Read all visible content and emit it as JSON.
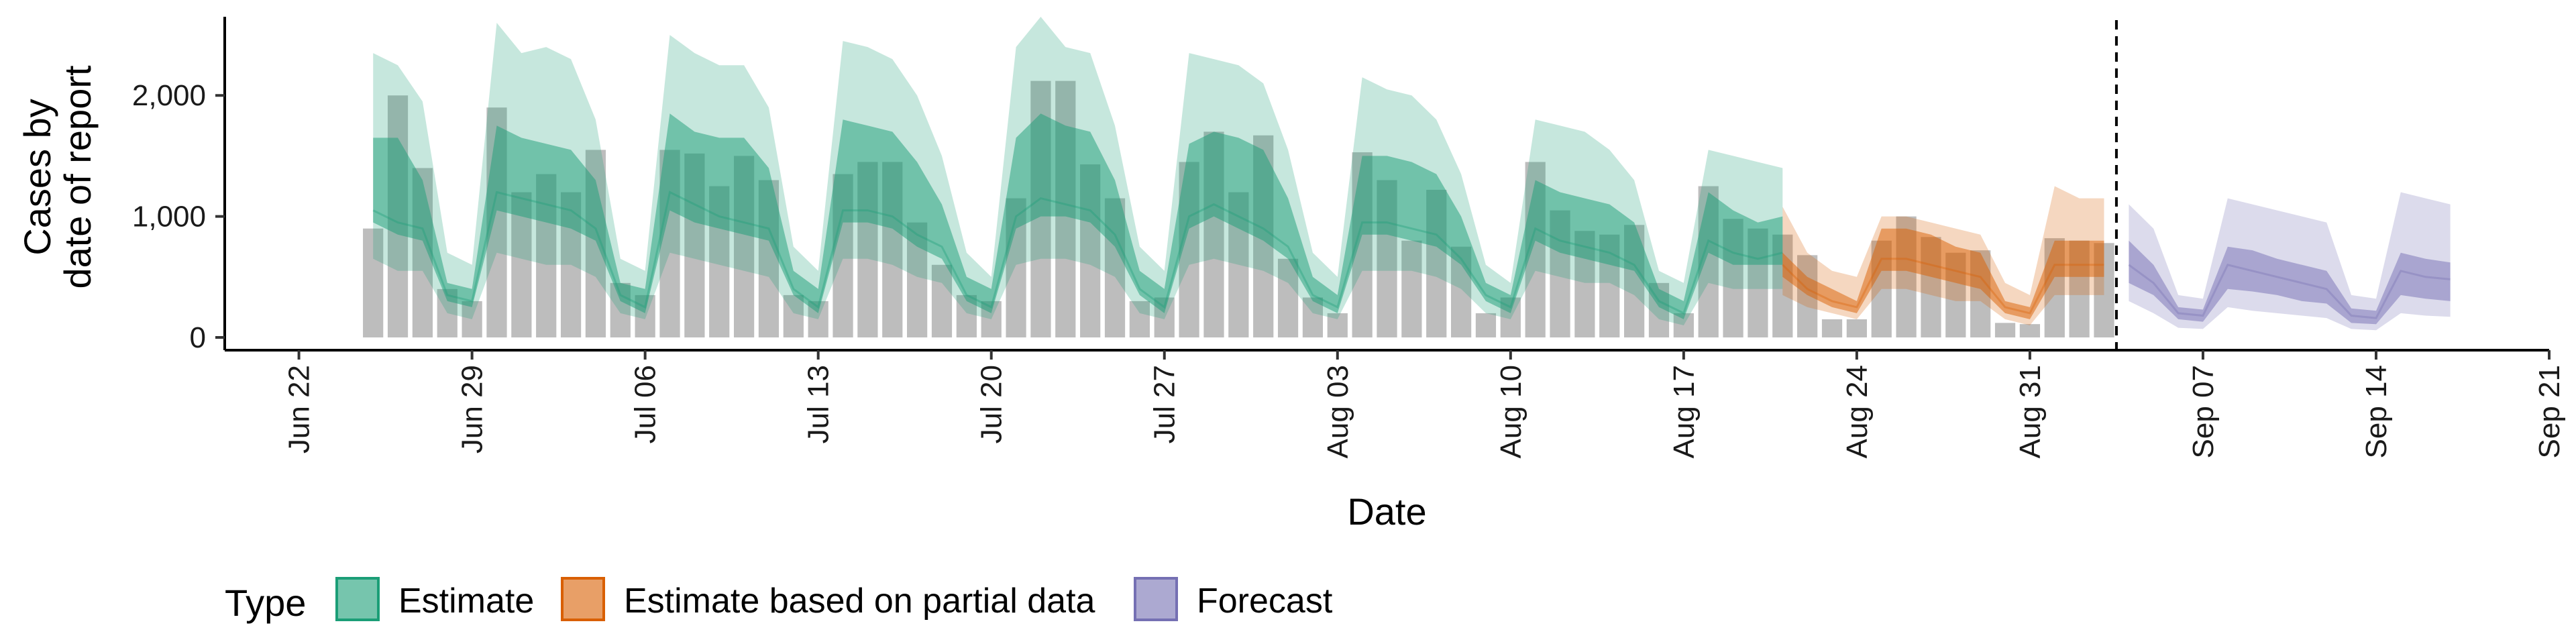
{
  "chart_data": {
    "type": "area",
    "xlabel": "Date",
    "ylabel": [
      "Cases by",
      "date of report"
    ],
    "ylim": [
      0,
      2650
    ],
    "xlim": [
      "2020-06-19",
      "2020-09-21"
    ],
    "x_ticks": [
      "Jun 22",
      "Jun 29",
      "Jul 06",
      "Jul 13",
      "Jul 20",
      "Jul 27",
      "Aug 03",
      "Aug 10",
      "Aug 17",
      "Aug 24",
      "Aug 31",
      "Sep 07",
      "Sep 14",
      "Sep 21"
    ],
    "x_tick_dates": [
      "2020-06-22",
      "2020-06-29",
      "2020-07-06",
      "2020-07-13",
      "2020-07-20",
      "2020-07-27",
      "2020-08-03",
      "2020-08-10",
      "2020-08-17",
      "2020-08-24",
      "2020-08-31",
      "2020-09-07",
      "2020-09-14",
      "2020-09-21"
    ],
    "y_ticks": [
      0,
      1000,
      2000
    ],
    "y_tick_labels": [
      "0",
      "1,000",
      "2,000"
    ],
    "start_date": "2020-06-25",
    "reported_cases": [
      900,
      2000,
      1400,
      400,
      300,
      1900,
      1200,
      1350,
      1200,
      1550,
      450,
      350,
      1550,
      1520,
      1250,
      1500,
      1300,
      350,
      300,
      1350,
      1450,
      1450,
      950,
      600,
      350,
      300,
      1150,
      2120,
      2120,
      1430,
      1150,
      300,
      330,
      1450,
      1700,
      1200,
      1670,
      650,
      330,
      200,
      1530,
      1300,
      800,
      1220,
      750,
      200,
      330,
      1450,
      1050,
      880,
      850,
      930,
      450,
      200,
      1250,
      980,
      900,
      850,
      680,
      150,
      150,
      800,
      1000,
      830,
      700,
      720,
      120,
      110,
      820,
      800,
      780
    ],
    "series": [
      {
        "name": "Estimate",
        "color": "#1b9e77",
        "x_start": "2020-06-25",
        "median": [
          1050,
          950,
          900,
          350,
          300,
          1200,
          1150,
          1100,
          1050,
          900,
          350,
          250,
          1200,
          1100,
          1000,
          950,
          900,
          400,
          250,
          1050,
          1050,
          1000,
          850,
          750,
          350,
          250,
          1000,
          1150,
          1100,
          1050,
          850,
          400,
          250,
          1000,
          1100,
          1000,
          900,
          750,
          350,
          250,
          950,
          950,
          900,
          850,
          650,
          350,
          250,
          900,
          800,
          750,
          700,
          600,
          300,
          200,
          800,
          700,
          650,
          700
        ],
        "lower50": [
          950,
          850,
          800,
          300,
          250,
          1050,
          1000,
          950,
          900,
          800,
          300,
          200,
          1050,
          950,
          900,
          850,
          800,
          350,
          200,
          950,
          950,
          900,
          750,
          650,
          300,
          200,
          900,
          1000,
          1000,
          950,
          750,
          350,
          200,
          900,
          1000,
          900,
          800,
          650,
          300,
          200,
          850,
          850,
          800,
          750,
          600,
          300,
          200,
          800,
          700,
          650,
          600,
          550,
          250,
          150,
          700,
          600,
          600,
          600
        ],
        "upper50": [
          1650,
          1650,
          1300,
          450,
          400,
          1750,
          1650,
          1600,
          1550,
          1300,
          450,
          400,
          1850,
          1700,
          1650,
          1650,
          1400,
          550,
          400,
          1800,
          1750,
          1700,
          1450,
          1100,
          500,
          400,
          1650,
          1850,
          1750,
          1700,
          1300,
          550,
          400,
          1600,
          1700,
          1650,
          1550,
          1150,
          500,
          350,
          1500,
          1500,
          1450,
          1350,
          1000,
          450,
          350,
          1300,
          1200,
          1150,
          1100,
          950,
          400,
          300,
          1200,
          1050,
          950,
          1000
        ],
        "lower90": [
          650,
          550,
          550,
          200,
          150,
          700,
          650,
          600,
          600,
          500,
          200,
          150,
          700,
          650,
          600,
          550,
          500,
          200,
          150,
          650,
          650,
          600,
          500,
          450,
          200,
          150,
          600,
          650,
          650,
          600,
          500,
          200,
          150,
          600,
          650,
          600,
          550,
          450,
          200,
          150,
          550,
          550,
          550,
          500,
          400,
          200,
          150,
          550,
          500,
          450,
          450,
          350,
          150,
          100,
          450,
          400,
          400,
          400
        ],
        "upper90": [
          2350,
          2250,
          1950,
          700,
          600,
          2600,
          2350,
          2400,
          2300,
          1800,
          650,
          550,
          2500,
          2350,
          2250,
          2250,
          1900,
          750,
          550,
          2450,
          2400,
          2300,
          2000,
          1500,
          700,
          500,
          2400,
          2650,
          2400,
          2350,
          1750,
          750,
          550,
          2350,
          2300,
          2250,
          2100,
          1550,
          700,
          500,
          2150,
          2050,
          2000,
          1800,
          1350,
          600,
          450,
          1800,
          1750,
          1700,
          1550,
          1300,
          550,
          450,
          1550,
          1500,
          1450,
          1400
        ]
      },
      {
        "name": "Estimate based on partial data",
        "color": "#d95f02",
        "x_start": "2020-08-21",
        "median": [
          600,
          400,
          300,
          250,
          650,
          650,
          600,
          550,
          500,
          250,
          200,
          600,
          600,
          600
        ],
        "lower50": [
          500,
          350,
          250,
          200,
          550,
          550,
          500,
          450,
          400,
          200,
          150,
          500,
          500,
          500
        ],
        "upper50": [
          700,
          500,
          400,
          300,
          900,
          900,
          850,
          750,
          700,
          300,
          250,
          800,
          800,
          800
        ],
        "lower90": [
          350,
          250,
          200,
          150,
          400,
          400,
          350,
          300,
          300,
          150,
          100,
          350,
          350,
          350
        ],
        "upper90": [
          1080,
          700,
          550,
          500,
          1000,
          1000,
          950,
          900,
          850,
          450,
          350,
          1250,
          1150,
          1150
        ]
      },
      {
        "name": "Forecast",
        "color": "#7570b3",
        "x_start": "2020-09-04",
        "median": [
          600,
          450,
          200,
          180,
          600,
          550,
          500,
          450,
          400,
          180,
          160,
          550,
          500,
          480
        ],
        "lower50": [
          450,
          350,
          150,
          130,
          400,
          380,
          350,
          300,
          280,
          120,
          110,
          350,
          320,
          300
        ],
        "upper50": [
          800,
          600,
          250,
          230,
          750,
          720,
          650,
          600,
          550,
          240,
          220,
          700,
          650,
          620
        ],
        "lower90": [
          300,
          200,
          80,
          70,
          250,
          220,
          200,
          180,
          160,
          70,
          60,
          200,
          180,
          170
        ],
        "upper90": [
          1100,
          900,
          350,
          320,
          1150,
          1100,
          1050,
          1000,
          950,
          350,
          320,
          1200,
          1150,
          1100
        ]
      }
    ],
    "forecast_cutoff_date": "2020-09-03",
    "legend": {
      "title": "Type",
      "position": "bottom-left",
      "entries": [
        "Estimate",
        "Estimate based on partial data",
        "Forecast"
      ]
    },
    "grid": false
  }
}
